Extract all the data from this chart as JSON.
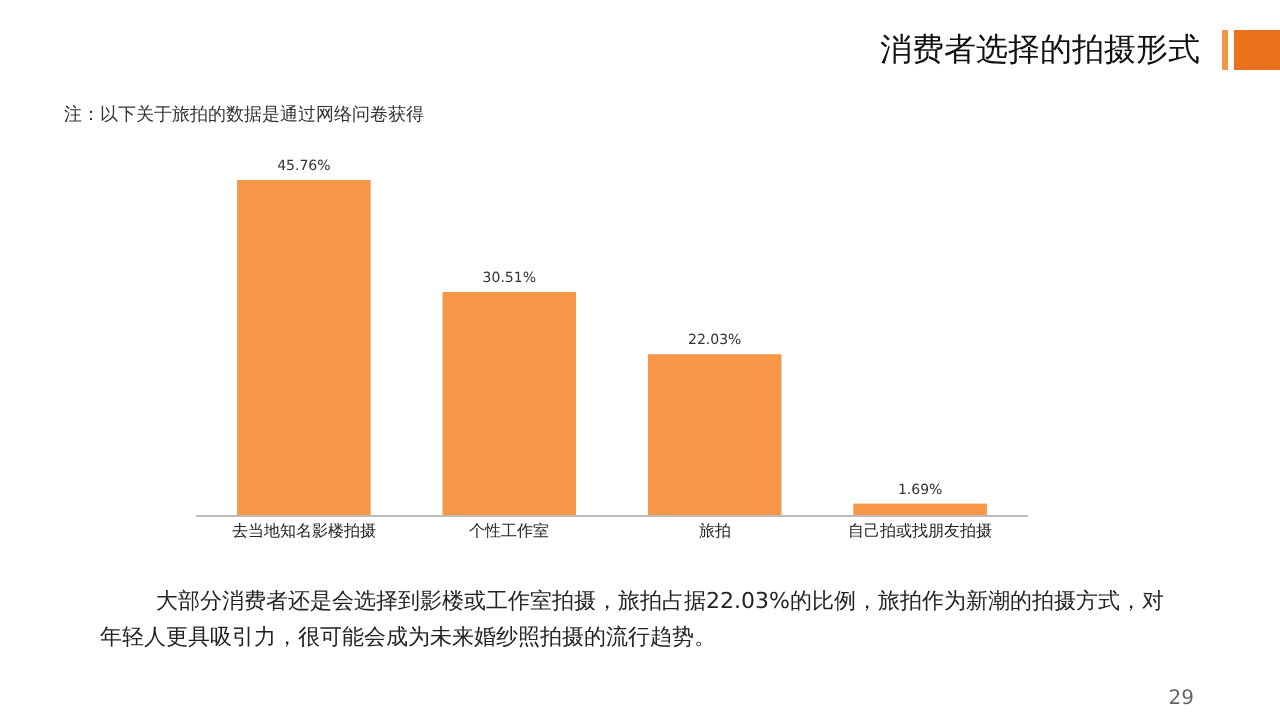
{
  "chart_data": {
    "type": "bar",
    "title": "消费者选择的拍摄形式",
    "categories": [
      "去当地知名影楼拍摄",
      "个性工作室",
      "旅拍",
      "自己拍或找朋友拍摄"
    ],
    "values": [
      45.76,
      30.51,
      22.03,
      1.69
    ],
    "value_labels": [
      "45.76%",
      "30.51%",
      "22.03%",
      "1.69%"
    ],
    "color": "#f79646",
    "annotations": [
      "注：以下关于旅拍的数据是通过网络问卷获得",
      "大部分消费者还是会选择到影楼或工作室拍摄，旅拍占据22.03%的比例，旅拍作为新潮的拍摄方式，对年轻人更具吸引力，很可能会成为未来婚纱照拍摄的流行趋势。",
      "29"
    ]
  }
}
